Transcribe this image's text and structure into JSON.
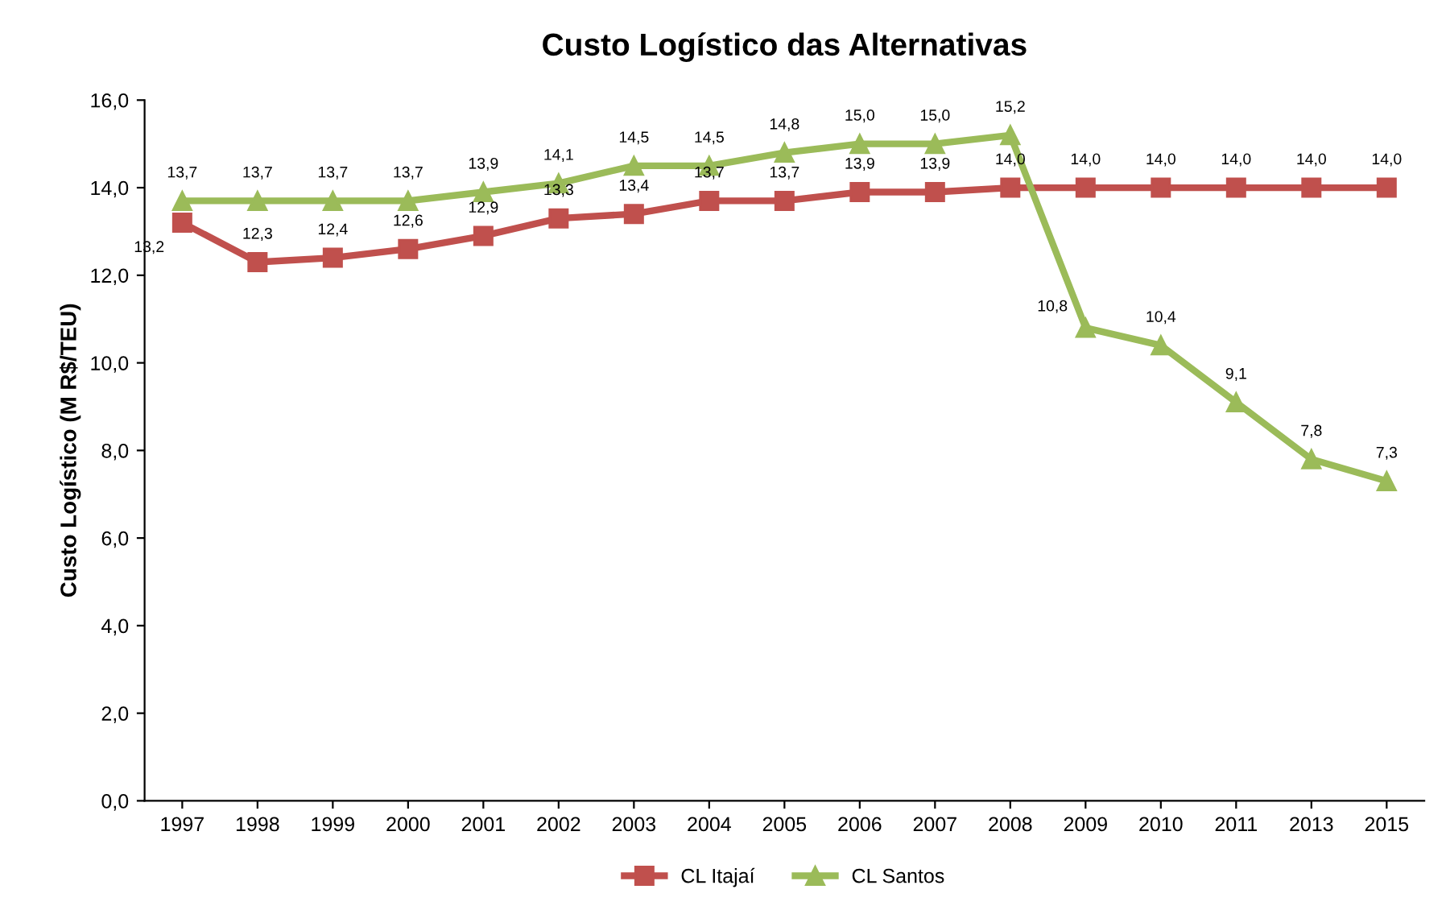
{
  "chart_data": {
    "type": "line",
    "title": "Custo Logístico das Alternativas",
    "ylabel": "Custo Logístico (M R$/TEU)",
    "categories": [
      "1997",
      "1998",
      "1999",
      "2000",
      "2001",
      "2002",
      "2003",
      "2004",
      "2005",
      "2006",
      "2007",
      "2008",
      "2009",
      "2010",
      "2011",
      "2013",
      "2015"
    ],
    "series": [
      {
        "name": "CL Itajaí",
        "color": "#c0504d",
        "marker": "square",
        "values": [
          13.2,
          12.3,
          12.4,
          12.6,
          12.9,
          13.3,
          13.4,
          13.7,
          13.7,
          13.9,
          13.9,
          14.0,
          14.0,
          14.0,
          14.0,
          14.0,
          14.0
        ],
        "value_labels": [
          "13,2",
          "12,3",
          "12,4",
          "12,6",
          "12,9",
          "13,3",
          "13,4",
          "13,7",
          "13,7",
          "13,9",
          "13,9",
          "14,0",
          "14,0",
          "14,0",
          "14,0",
          "14,0",
          "14,0"
        ]
      },
      {
        "name": "CL Santos",
        "color": "#9bbb59",
        "marker": "triangle",
        "values": [
          13.7,
          13.7,
          13.7,
          13.7,
          13.9,
          14.1,
          14.5,
          14.5,
          14.8,
          15.0,
          15.0,
          15.2,
          10.8,
          10.4,
          9.1,
          7.8,
          7.3
        ],
        "value_labels": [
          "13,7",
          "13,7",
          "13,7",
          "13,7",
          "13,9",
          "14,1",
          "14,5",
          "14,5",
          "14,8",
          "15,0",
          "15,0",
          "15,2",
          "10,8",
          "10,4",
          "9,1",
          "7,8",
          "7,3"
        ]
      }
    ],
    "ylim": [
      0,
      16
    ],
    "yticks": [
      {
        "value": 0,
        "label": "0,0"
      },
      {
        "value": 2,
        "label": "2,0"
      },
      {
        "value": 4,
        "label": "4,0"
      },
      {
        "value": 6,
        "label": "6,0"
      },
      {
        "value": 8,
        "label": "8,0"
      },
      {
        "value": 10,
        "label": "10,0"
      },
      {
        "value": 12,
        "label": "12,0"
      },
      {
        "value": 14,
        "label": "14,0"
      },
      {
        "value": 16,
        "label": "16,0"
      }
    ],
    "grid": false,
    "legend": "bottom"
  }
}
